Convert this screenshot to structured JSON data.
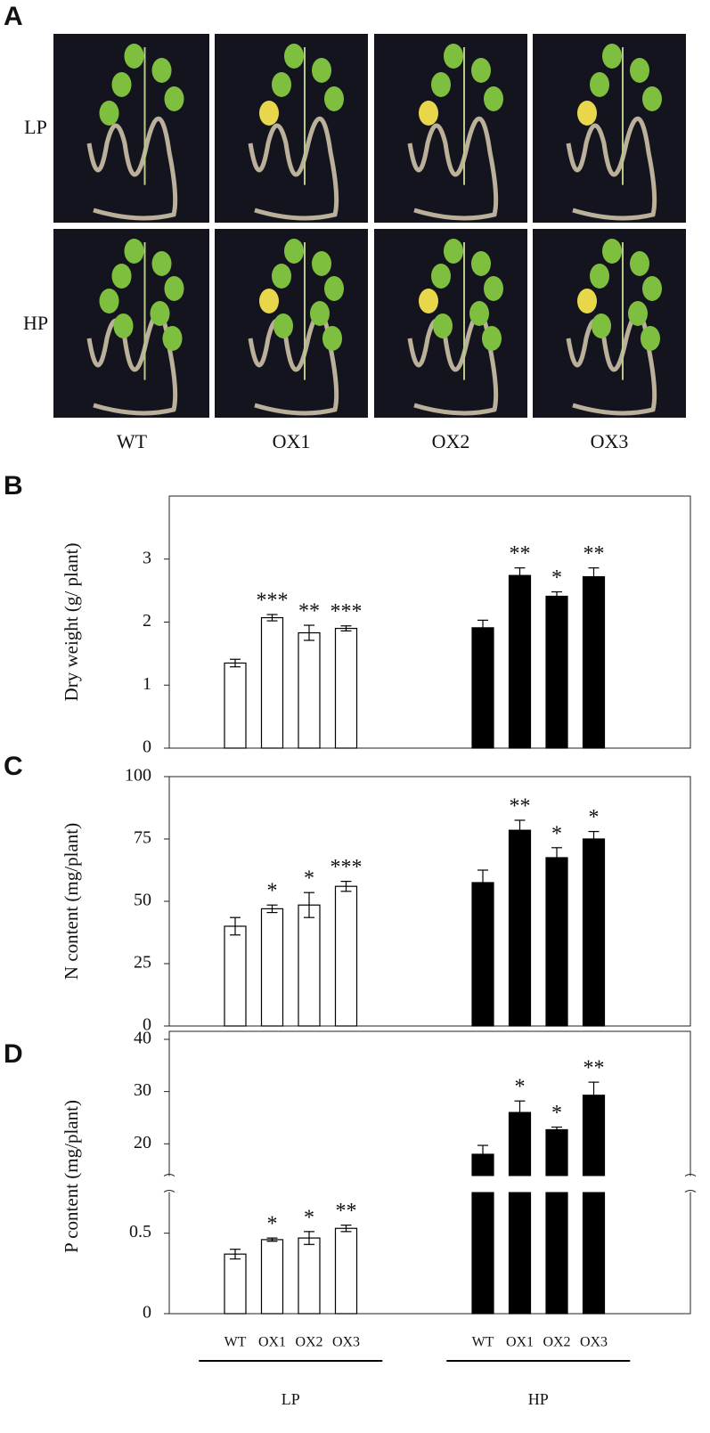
{
  "photo_panel": {
    "label": "A",
    "rows": [
      "LP",
      "HP"
    ],
    "columns": [
      "WT",
      "OX1",
      "OX2",
      "OX3"
    ]
  },
  "chart_data": [
    {
      "type": "bar",
      "panel": "B",
      "ylabel": "Dry weight (g/ plant)",
      "ylim": [
        0,
        4
      ],
      "yticks": [
        0,
        1,
        2,
        3
      ],
      "series": [
        {
          "color": "#ffffff",
          "values": [
            1.35,
            2.07,
            1.83,
            1.9
          ],
          "errors": [
            0.06,
            0.05,
            0.12,
            0.04
          ],
          "annotations": [
            null,
            "***",
            "**",
            "***"
          ]
        },
        {
          "color": "#000000",
          "values": [
            1.91,
            2.74,
            2.41,
            2.72
          ],
          "errors": [
            0.12,
            0.12,
            0.07,
            0.14
          ],
          "annotations": [
            null,
            "**",
            "*",
            "**"
          ]
        }
      ]
    },
    {
      "type": "bar",
      "panel": "C",
      "ylabel": "N content (mg/plant)",
      "ylim": [
        0,
        100
      ],
      "yticks": [
        0,
        25,
        50,
        75,
        100
      ],
      "series": [
        {
          "color": "#ffffff",
          "values": [
            40,
            47,
            48.5,
            56
          ],
          "errors": [
            3.5,
            1.5,
            5,
            2
          ],
          "annotations": [
            null,
            "*",
            "*",
            "***"
          ]
        },
        {
          "color": "#000000",
          "values": [
            57.5,
            78.5,
            67.5,
            75
          ],
          "errors": [
            5,
            4,
            4,
            3
          ],
          "annotations": [
            null,
            "**",
            "*",
            "*"
          ]
        }
      ]
    },
    {
      "type": "bar",
      "panel": "D",
      "ylabel": "P content (mg/plant)",
      "ylim": [
        0,
        40
      ],
      "ybreak": [
        0.75,
        14
      ],
      "yticks": [
        0,
        0.5,
        20,
        30,
        40
      ],
      "categories": [
        "WT",
        "OX1",
        "OX2",
        "OX3"
      ],
      "series": [
        {
          "name": "LP",
          "color": "#ffffff",
          "values": [
            0.37,
            0.46,
            0.47,
            0.53
          ],
          "errors": [
            0.03,
            0.01,
            0.04,
            0.02
          ],
          "annotations": [
            null,
            "*",
            "*",
            "**"
          ]
        },
        {
          "name": "HP",
          "color": "#000000",
          "values": [
            18,
            26,
            22.7,
            29.3
          ],
          "errors": [
            1.7,
            2.2,
            0.5,
            2.5
          ],
          "annotations": [
            null,
            "*",
            "*",
            "**"
          ]
        }
      ]
    }
  ]
}
